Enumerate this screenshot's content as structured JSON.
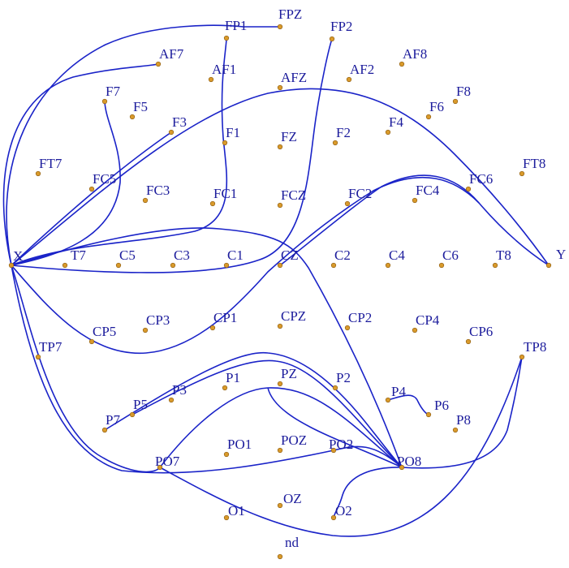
{
  "diagram": {
    "nodes": [
      {
        "id": "FP1",
        "label": "FP1"
      },
      {
        "id": "FPZ",
        "label": "FPZ"
      },
      {
        "id": "FP2",
        "label": "FP2"
      },
      {
        "id": "AF7",
        "label": "AF7"
      },
      {
        "id": "AF1",
        "label": "AF1"
      },
      {
        "id": "AFZ",
        "label": "AFZ"
      },
      {
        "id": "AF2",
        "label": "AF2"
      },
      {
        "id": "AF8",
        "label": "AF8"
      },
      {
        "id": "F7",
        "label": "F7"
      },
      {
        "id": "F5",
        "label": "F5"
      },
      {
        "id": "F3",
        "label": "F3"
      },
      {
        "id": "F1",
        "label": "F1"
      },
      {
        "id": "FZ",
        "label": "FZ"
      },
      {
        "id": "F2",
        "label": "F2"
      },
      {
        "id": "F4",
        "label": "F4"
      },
      {
        "id": "F6",
        "label": "F6"
      },
      {
        "id": "F8",
        "label": "F8"
      },
      {
        "id": "FT7",
        "label": "FT7"
      },
      {
        "id": "FC5",
        "label": "FC5"
      },
      {
        "id": "FC3",
        "label": "FC3"
      },
      {
        "id": "FC1",
        "label": "FC1"
      },
      {
        "id": "FCZ",
        "label": "FCZ"
      },
      {
        "id": "FC2",
        "label": "FC2"
      },
      {
        "id": "FC4",
        "label": "FC4"
      },
      {
        "id": "FC6",
        "label": "FC6"
      },
      {
        "id": "FT8",
        "label": "FT8"
      },
      {
        "id": "X",
        "label": "X"
      },
      {
        "id": "T7",
        "label": "T7"
      },
      {
        "id": "C5",
        "label": "C5"
      },
      {
        "id": "C3",
        "label": "C3"
      },
      {
        "id": "C1",
        "label": "C1"
      },
      {
        "id": "CZ",
        "label": "CZ"
      },
      {
        "id": "C2",
        "label": "C2"
      },
      {
        "id": "C4",
        "label": "C4"
      },
      {
        "id": "C6",
        "label": "C6"
      },
      {
        "id": "T8",
        "label": "T8"
      },
      {
        "id": "Y",
        "label": "Y"
      },
      {
        "id": "CP5",
        "label": "CP5"
      },
      {
        "id": "CP3",
        "label": "CP3"
      },
      {
        "id": "CP1",
        "label": "CP1"
      },
      {
        "id": "CPZ",
        "label": "CPZ"
      },
      {
        "id": "CP2",
        "label": "CP2"
      },
      {
        "id": "CP4",
        "label": "CP4"
      },
      {
        "id": "CP6",
        "label": "CP6"
      },
      {
        "id": "TP7",
        "label": "TP7"
      },
      {
        "id": "TP8",
        "label": "TP8"
      },
      {
        "id": "P7",
        "label": "P7"
      },
      {
        "id": "P5",
        "label": "P5"
      },
      {
        "id": "P3",
        "label": "P3"
      },
      {
        "id": "P1",
        "label": "P1"
      },
      {
        "id": "PZ",
        "label": "PZ"
      },
      {
        "id": "P2",
        "label": "P2"
      },
      {
        "id": "P4",
        "label": "P4"
      },
      {
        "id": "P6",
        "label": "P6"
      },
      {
        "id": "P8",
        "label": "P8"
      },
      {
        "id": "PO7",
        "label": "PO7"
      },
      {
        "id": "PO1",
        "label": "PO1"
      },
      {
        "id": "POZ",
        "label": "POZ"
      },
      {
        "id": "PO2",
        "label": "PO2"
      },
      {
        "id": "PO8",
        "label": "PO8"
      },
      {
        "id": "O1",
        "label": "O1"
      },
      {
        "id": "OZ",
        "label": "OZ"
      },
      {
        "id": "O2",
        "label": "O2"
      },
      {
        "id": "nd",
        "label": "nd"
      }
    ],
    "edges": [
      {
        "from": "X",
        "to": "FPZ"
      },
      {
        "from": "X",
        "to": "AF7"
      },
      {
        "from": "X",
        "to": "F3"
      },
      {
        "from": "X",
        "to": "FP1"
      },
      {
        "from": "X",
        "to": "FP2"
      },
      {
        "from": "X",
        "to": "F7"
      },
      {
        "from": "X",
        "to": "FC4"
      },
      {
        "from": "X",
        "to": "PO8"
      },
      {
        "from": "X",
        "to": "PO2"
      },
      {
        "from": "AFZ",
        "to": "Y"
      },
      {
        "from": "FC4",
        "to": "Y"
      },
      {
        "from": "P7",
        "to": "PO8"
      },
      {
        "from": "P7",
        "to": "PO8"
      },
      {
        "from": "PO7",
        "to": "PO8"
      },
      {
        "from": "PO7",
        "to": "TP8"
      },
      {
        "from": "PO8",
        "to": "TP8"
      },
      {
        "from": "PO8",
        "to": "O2"
      },
      {
        "from": "P4",
        "to": "P6"
      }
    ]
  }
}
